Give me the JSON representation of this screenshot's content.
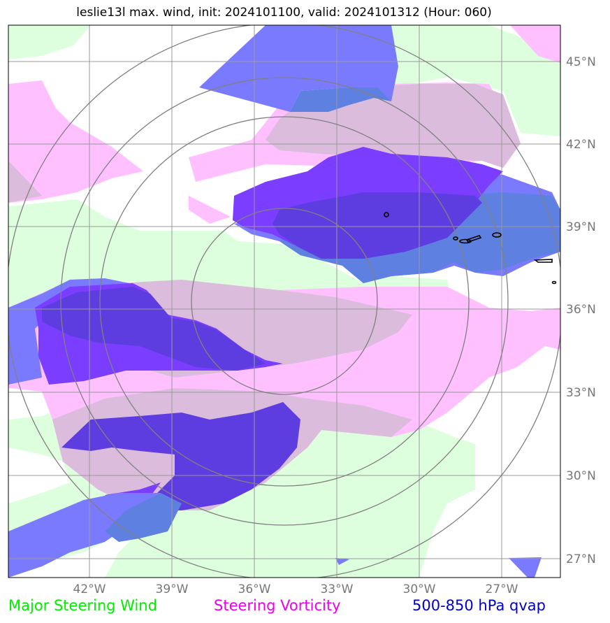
{
  "title": "leslie13l max. wind, init: 2024101100, valid: 2024101312 (Hour: 060)",
  "lon_labels": [
    "42°W",
    "39°W",
    "36°W",
    "33°W",
    "30°W",
    "27°W"
  ],
  "lat_labels": [
    "45°N",
    "42°N",
    "39°N",
    "36°N",
    "33°N",
    "30°N",
    "27°N"
  ],
  "legend": {
    "wind": {
      "label": "Major Steering Wind",
      "color": "#00ee00"
    },
    "vorticity": {
      "label": "Steering Vorticity",
      "color": "#ee00ee"
    },
    "qvap": {
      "label": "500-850 hPa qvap",
      "color": "#0000cc"
    }
  },
  "colors": {
    "wind_fill": "#ddffdd",
    "vort_fill": "#ffc0ff",
    "overlap_fill": "#dcbcdc",
    "qvap_light": "#7a7aff",
    "qvap_mid": "#5e80e0",
    "qvap_dark": "#5d3de0",
    "qvap_violet": "#7b3dff",
    "grid": "#999999",
    "range_rings": "#888888"
  }
}
